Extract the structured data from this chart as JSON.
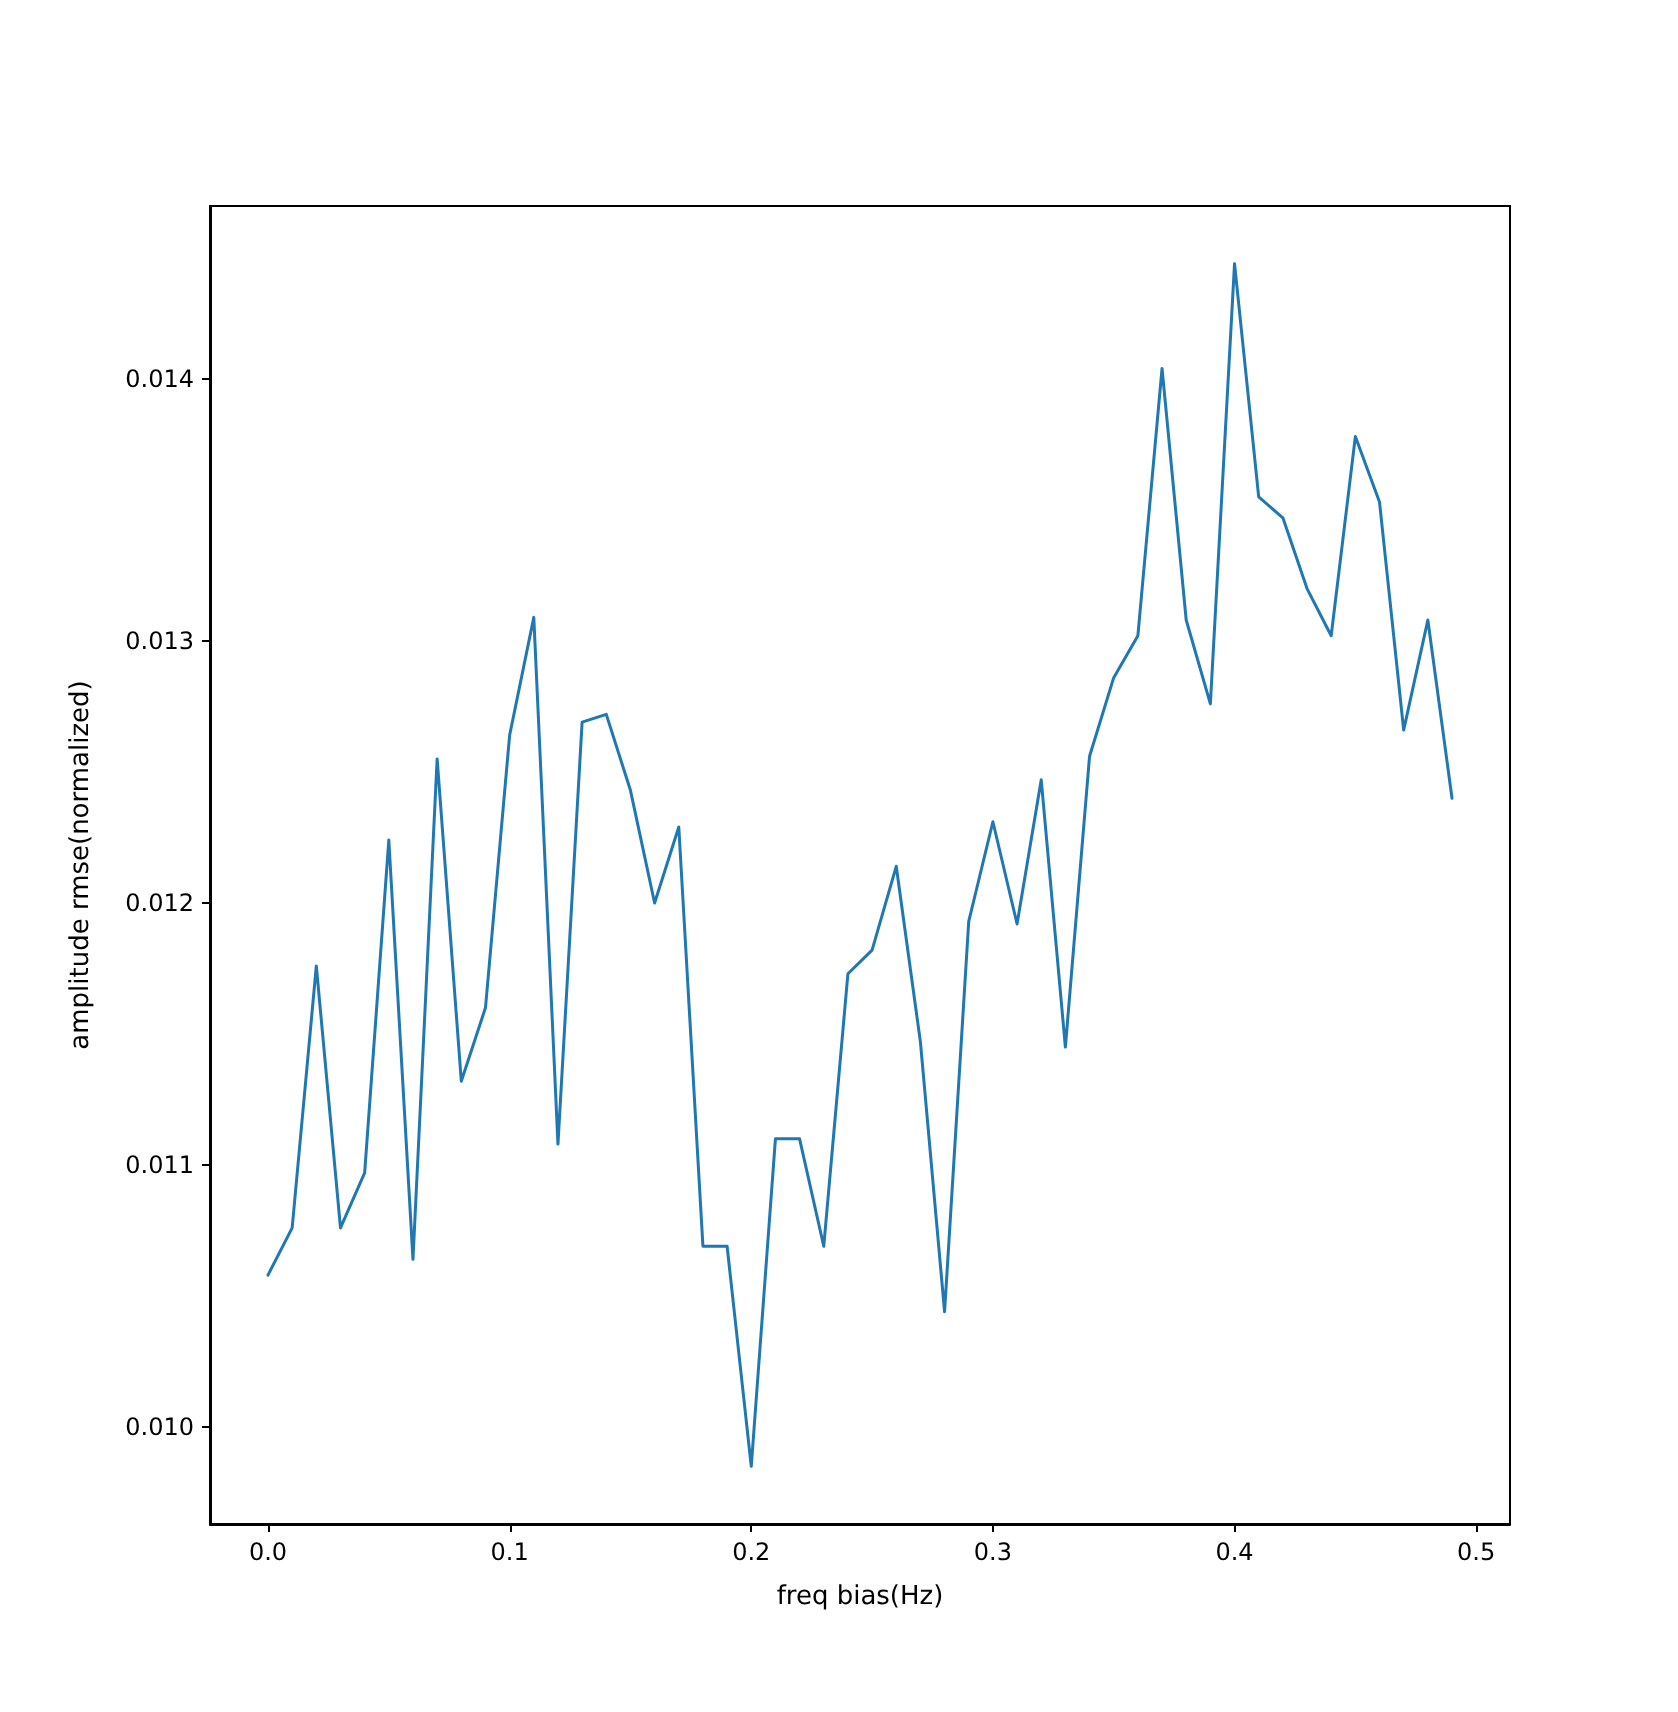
{
  "chart_data": {
    "type": "line",
    "xlabel": "freq bias(Hz)",
    "ylabel": "amplitude rmse(normalized)",
    "x": [
      0,
      0.01,
      0.02,
      0.03,
      0.04,
      0.05,
      0.06,
      0.07,
      0.08,
      0.09,
      0.1,
      0.11,
      0.12,
      0.13,
      0.14,
      0.15,
      0.16,
      0.17,
      0.18,
      0.19,
      0.2,
      0.21,
      0.22,
      0.23,
      0.24,
      0.25,
      0.26,
      0.27,
      0.28,
      0.29,
      0.3,
      0.31,
      0.32,
      0.33,
      0.34,
      0.35,
      0.36,
      0.37,
      0.38,
      0.39,
      0.4,
      0.41,
      0.42,
      0.43,
      0.44,
      0.45,
      0.46,
      0.47,
      0.48,
      0.49
    ],
    "series": [
      {
        "color": "#1f77b4",
        "values": [
          0.01058,
          0.01076,
          0.01176,
          0.01076,
          0.01097,
          0.01224,
          0.01064,
          0.01255,
          0.01132,
          0.0116,
          0.01264,
          0.01309,
          0.01108,
          0.01269,
          0.01272,
          0.01243,
          0.012,
          0.01229,
          0.01069,
          0.01069,
          0.00985,
          0.0111,
          0.0111,
          0.01069,
          0.01173,
          0.01182,
          0.01214,
          0.01147,
          0.01044,
          0.01193,
          0.01231,
          0.01192,
          0.01247,
          0.01145,
          0.01256,
          0.01286,
          0.01302,
          0.01404,
          0.01308,
          0.01276,
          0.01444,
          0.01355,
          0.01347,
          0.0132,
          0.01302,
          0.01378,
          0.01353,
          0.01266,
          0.01308,
          0.0124
        ]
      }
    ],
    "xlim": [
      -0.024,
      0.514
    ],
    "ylim": [
      0.00963,
      0.01466
    ],
    "xticks": [
      {
        "value": 0,
        "label": "0.0"
      },
      {
        "value": 0.1,
        "label": "0.1"
      },
      {
        "value": 0.2,
        "label": "0.2"
      },
      {
        "value": 0.3,
        "label": "0.3"
      },
      {
        "value": 0.4,
        "label": "0.4"
      },
      {
        "value": 0.5,
        "label": "0.5"
      }
    ],
    "yticks": [
      {
        "value": 0.01,
        "label": "0.010"
      },
      {
        "value": 0.011,
        "label": "0.011"
      },
      {
        "value": 0.012,
        "label": "0.012"
      },
      {
        "value": 0.013,
        "label": "0.013"
      },
      {
        "value": 0.014,
        "label": "0.014"
      }
    ],
    "grid": false,
    "marker": "none",
    "line_style": "solid"
  }
}
